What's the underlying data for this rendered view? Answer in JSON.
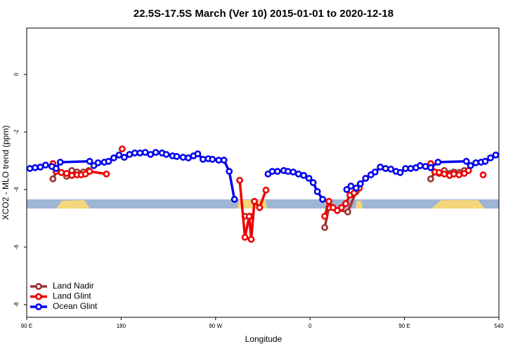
{
  "chart_data": {
    "type": "line",
    "title": "22.5S-17.5S March (Ver 10)   2015-01-01 to 2020-12-18",
    "x_label": "Longitude",
    "y_label": "XCO2 - MLO trend (ppm)",
    "xlim": [
      90,
      540
    ],
    "xticks": [
      {
        "value": 90,
        "label": "90 E"
      },
      180,
      {
        "value": 270,
        "label": "90 W"
      },
      {
        "value": 360,
        "label": "0"
      },
      {
        "value": 450,
        "label": "90 E"
      },
      540
    ],
    "ylim": [
      -8.44,
      1.61
    ],
    "yticks": [
      -8,
      -6,
      -4,
      -2,
      0
    ],
    "legend": "bottom-left",
    "series": [
      {
        "name": "Land Nadir",
        "color": "#993333",
        "x": [
          115,
          119,
          128,
          133,
          138,
          144,
          149,
          null,
          298,
          303,
          null,
          374,
          378,
          396,
          404,
          null,
          475,
          479,
          483,
          488,
          493,
          497,
          502,
          507
        ],
        "values": [
          -3.63,
          -3.34,
          -3.54,
          -3.34,
          -3.39,
          -3.39,
          -3.34,
          null,
          -4.93,
          -4.93,
          null,
          -5.32,
          -4.63,
          -4.78,
          -4.07,
          null,
          -3.63,
          -3.39,
          -3.44,
          -3.34,
          -3.44,
          -3.39,
          -3.41,
          -3.34
        ]
      },
      {
        "name": "Land Glint",
        "color": "#ee0000",
        "x": [
          115,
          118,
          123,
          128,
          133,
          138,
          142,
          146,
          150,
          166,
          null,
          181,
          null,
          293,
          298,
          302,
          304,
          307,
          312,
          318,
          null,
          374,
          378,
          382,
          386,
          390,
          394,
          398,
          402,
          407,
          null,
          475,
          479,
          483,
          488,
          493,
          497,
          502,
          507,
          511,
          null,
          525
        ],
        "values": [
          -3.1,
          -3.37,
          -3.41,
          -3.44,
          -3.51,
          -3.49,
          -3.49,
          -3.46,
          -3.37,
          -3.46,
          null,
          -2.59,
          null,
          -3.68,
          -5.66,
          -4.93,
          -5.73,
          -4.41,
          -4.63,
          -4.02,
          null,
          -4.93,
          -4.41,
          -4.63,
          -4.73,
          -4.63,
          -4.49,
          -4.2,
          -4.12,
          -3.95,
          null,
          -3.1,
          -3.39,
          -3.41,
          -3.46,
          -3.51,
          -3.46,
          -3.49,
          -3.44,
          -3.34,
          null,
          -3.49
        ]
      },
      {
        "name": "Ocean Glint",
        "color": "#0000ee",
        "x": [
          93,
          98,
          103,
          108,
          114,
          118,
          122,
          150,
          154,
          158,
          164,
          168,
          173,
          178,
          183,
          188,
          193,
          198,
          203,
          208,
          213,
          219,
          223,
          229,
          233,
          239,
          244,
          249,
          253,
          258,
          263,
          267,
          273,
          278,
          283,
          288,
          null,
          320,
          324,
          329,
          335,
          339,
          344,
          349,
          354,
          359,
          363,
          367,
          372,
          null,
          395,
          399,
          404,
          408,
          413,
          418,
          422,
          427,
          432,
          437,
          442,
          446,
          451,
          456,
          461,
          465,
          470,
          475,
          482,
          509,
          513,
          518,
          523,
          527,
          532,
          537
        ],
        "values": [
          -3.27,
          -3.24,
          -3.22,
          -3.15,
          -3.2,
          -3.27,
          -3.05,
          -3.02,
          -3.17,
          -3.07,
          -3.05,
          -3.02,
          -2.9,
          -2.8,
          -2.88,
          -2.78,
          -2.73,
          -2.73,
          -2.71,
          -2.78,
          -2.71,
          -2.73,
          -2.78,
          -2.83,
          -2.85,
          -2.88,
          -2.9,
          -2.83,
          -2.76,
          -2.95,
          -2.93,
          -2.95,
          -2.98,
          -2.98,
          -3.37,
          -4.34,
          null,
          -3.46,
          -3.37,
          -3.37,
          -3.34,
          -3.37,
          -3.39,
          -3.46,
          -3.51,
          -3.61,
          -3.76,
          -4.07,
          -4.34,
          null,
          -4.0,
          -3.88,
          -3.95,
          -3.8,
          -3.61,
          -3.49,
          -3.39,
          -3.22,
          -3.27,
          -3.29,
          -3.37,
          -3.41,
          -3.27,
          -3.27,
          -3.24,
          -3.17,
          -3.2,
          -3.24,
          -3.05,
          -3.02,
          -3.17,
          -3.07,
          -3.05,
          -3.02,
          -2.9,
          -2.8
        ]
      }
    ]
  }
}
